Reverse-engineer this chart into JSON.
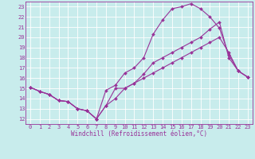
{
  "xlabel": "Windchill (Refroidissement éolien,°C)",
  "bg_color": "#c8ecec",
  "line_color": "#993399",
  "grid_color": "#ffffff",
  "xlim": [
    -0.5,
    23.5
  ],
  "ylim": [
    11.5,
    23.5
  ],
  "xticks": [
    0,
    1,
    2,
    3,
    4,
    5,
    6,
    7,
    8,
    9,
    10,
    11,
    12,
    13,
    14,
    15,
    16,
    17,
    18,
    19,
    20,
    21,
    22,
    23
  ],
  "yticks": [
    12,
    13,
    14,
    15,
    16,
    17,
    18,
    19,
    20,
    21,
    22,
    23
  ],
  "line1_x": [
    0,
    1,
    2,
    3,
    4,
    5,
    6,
    7,
    8,
    9,
    10,
    11,
    12,
    13,
    14,
    15,
    16,
    17,
    18,
    19,
    20,
    21,
    22,
    23
  ],
  "line1_y": [
    15.1,
    14.7,
    14.4,
    13.8,
    13.7,
    13.0,
    12.8,
    12.0,
    13.3,
    15.0,
    15.0,
    15.5,
    16.4,
    17.5,
    18.0,
    18.5,
    19.0,
    19.5,
    20.0,
    20.8,
    21.5,
    18.0,
    16.7,
    16.1
  ],
  "line2_x": [
    0,
    1,
    2,
    3,
    4,
    5,
    6,
    7,
    8,
    9,
    10,
    11,
    12,
    13,
    14,
    15,
    16,
    17,
    18,
    19,
    20,
    21,
    22,
    23
  ],
  "line2_y": [
    15.1,
    14.7,
    14.4,
    13.8,
    13.7,
    13.0,
    12.8,
    12.0,
    14.8,
    15.3,
    16.5,
    17.0,
    18.0,
    20.3,
    21.7,
    22.8,
    23.0,
    23.3,
    22.8,
    22.0,
    20.9,
    18.3,
    16.7,
    16.1
  ],
  "line3_x": [
    0,
    1,
    2,
    3,
    4,
    5,
    6,
    7,
    8,
    9,
    10,
    11,
    12,
    13,
    14,
    15,
    16,
    17,
    18,
    19,
    20,
    21,
    22,
    23
  ],
  "line3_y": [
    15.1,
    14.7,
    14.4,
    13.8,
    13.7,
    13.0,
    12.8,
    12.0,
    13.3,
    14.0,
    15.0,
    15.5,
    16.0,
    16.5,
    17.0,
    17.5,
    18.0,
    18.5,
    19.0,
    19.5,
    20.0,
    18.5,
    16.7,
    16.1
  ],
  "xlabel_fontsize": 5.5,
  "tick_fontsize": 5,
  "linewidth": 0.8,
  "markersize": 2.0
}
